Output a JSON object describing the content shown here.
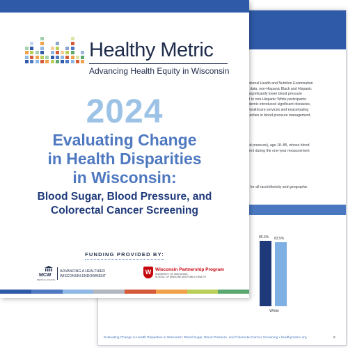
{
  "back_page": {
    "paragraph1": [
      "d National Health and Nutrition Examination",
      "ES) data, non-Hispanic Black and Hispanic",
      "d a significantly lower blood pressure",
      "ared to non-Hispanic White participants.",
      "pandemic introduced significant obstacles,",
      "ine healthcare services and exacerbating",
      "disparities in blood pressure management."
    ],
    "paragraph2": [
      "blood pressure), age 18–85, whose blood",
      "rement during the one-year measurement"
    ],
    "paragraph3": [
      "vels for all race/ethnicity and geographic"
    ],
    "chart_data": {
      "type": "bar",
      "categories": [
        "White"
      ],
      "series": [
        {
          "values": [
            85.5
          ]
        },
        {
          "values": [
            83.5
          ]
        }
      ],
      "data_labels": [
        "85.5%",
        "83.5%"
      ],
      "ylim": [
        0,
        100
      ]
    },
    "footer_text": "Evaluating Change in Health Disparities in Wisconsin: Blood Sugar, Blood Pressure, and Colorectal Cancer Screening • healthymetric.org",
    "page_number": "8"
  },
  "cover": {
    "brand_name": "Healthy Metric",
    "brand_tagline": "Advancing Health Equity in Wisconsin",
    "year": "2024",
    "title_lines": [
      "Evaluating Change",
      "in Health Disparities",
      "in Wisconsin:"
    ],
    "subtitle_lines": [
      "Blood Sugar, Blood Pressure, and",
      "Colorectal Cancer Screening"
    ],
    "funding_label": "FUNDING PROVIDED BY:",
    "funder1": {
      "logo_text": "MCW",
      "logo_subtext": "MEDICAL SCHOOL",
      "name_lines": [
        "ADVANCING A HEALTHIER",
        "WISCONSIN ENDOWMENT"
      ]
    },
    "funder2": {
      "crest_letter": "W",
      "name": "Wisconsin Partnership Program",
      "sub_lines": [
        "UNIVERSITY OF WISCONSIN",
        "SCHOOL OF MEDICINE AND PUBLIC HEALTH"
      ]
    }
  },
  "colors": {
    "brand_blue": "#2f5aa8",
    "year_light_blue": "#9cc3e6",
    "title_blue": "#4e78bf",
    "subtitle_navy": "#1f3a7a",
    "uw_red": "#c5050c",
    "bar_dark": "#1f3a7a",
    "bar_light": "#7fb0e3",
    "strip": [
      "#2f5aa8",
      "#4e78bf",
      "#8fb8e4",
      "#b3b8c0",
      "#d55a3a",
      "#f0a24a",
      "#b9cf5a",
      "#5aa870"
    ],
    "logo_palette": [
      "#2f5aa8",
      "#4e78bf",
      "#8fb8e4",
      "#d55a3a",
      "#f0a24a",
      "#b9cf5a",
      "#5aa870"
    ]
  }
}
